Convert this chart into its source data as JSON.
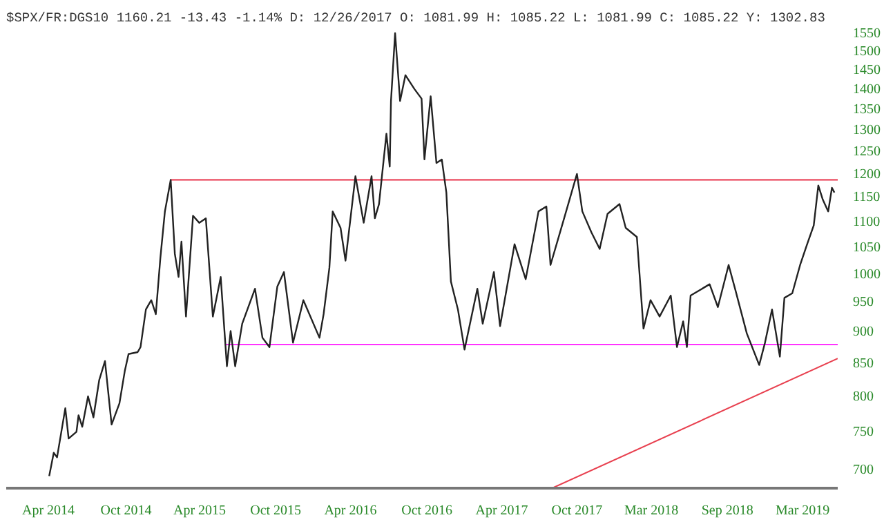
{
  "chart_data": {
    "type": "line",
    "title": "$SPX/FR:DGS10 1160.21 -13.43 -1.14% D: 12/26/2017 O: 1081.99 H: 1085.22 L: 1081.99 C: 1085.22 Y: 1302.83",
    "log": true,
    "grid": false,
    "xlim": [
      "2013-12-20",
      "2019-06-24"
    ],
    "xticks": [
      {
        "value": "2014-04-01",
        "label": "Apr 2014"
      },
      {
        "value": "2014-10-06",
        "label": "Oct 2014"
      },
      {
        "value": "2015-04-02",
        "label": "Apr 2015"
      },
      {
        "value": "2015-10-03",
        "label": "Oct 2015"
      },
      {
        "value": "2016-04-01",
        "label": "Apr 2016"
      },
      {
        "value": "2016-10-03",
        "label": "Oct 2016"
      },
      {
        "value": "2017-04-02",
        "label": "Apr 2017"
      },
      {
        "value": "2017-10-01",
        "label": "Oct 2017"
      },
      {
        "value": "2018-03-30",
        "label": "Mar 2018"
      },
      {
        "value": "2018-09-30",
        "label": "Sep 2018"
      },
      {
        "value": "2019-03-31",
        "label": "Mar 2019"
      }
    ],
    "ylim": [
      676,
      1550
    ],
    "yticks": [
      700,
      750,
      800,
      850,
      900,
      950,
      1000,
      1050,
      1100,
      1150,
      1200,
      1250,
      1300,
      1350,
      1400,
      1450,
      1500,
      1550
    ],
    "series": [
      {
        "color": "#e8334a",
        "x": [
          "2015-01-22",
          "2019-06-24"
        ],
        "values": [
          1185,
          1185
        ]
      },
      {
        "color": "#ff33ff",
        "x": [
          "2015-06-02",
          "2019-06-24"
        ],
        "values": [
          878,
          878
        ]
      },
      {
        "color": "#e8404f",
        "x": [
          "2017-08-02",
          "2019-06-24"
        ],
        "values": [
          676,
          856
        ]
      },
      {
        "color": "#222222",
        "x": [
          "2014-04-03",
          "2014-04-14",
          "2014-04-22",
          "2014-05-12",
          "2014-05-20",
          "2014-06-08",
          "2014-06-13",
          "2014-06-22",
          "2014-07-06",
          "2014-07-19",
          "2014-08-02",
          "2014-08-16",
          "2014-09-01",
          "2014-09-20",
          "2014-10-03",
          "2014-10-12",
          "2014-11-03",
          "2014-11-10",
          "2014-11-23",
          "2014-12-06",
          "2014-12-17",
          "2014-12-28",
          "2015-01-08",
          "2015-01-22",
          "2015-02-01",
          "2015-02-10",
          "2015-02-17",
          "2015-02-28",
          "2015-03-17",
          "2015-04-01",
          "2015-04-17",
          "2015-05-04",
          "2015-05-23",
          "2015-06-07",
          "2015-06-16",
          "2015-06-27",
          "2015-07-14",
          "2015-08-14",
          "2015-09-01",
          "2015-09-18",
          "2015-10-07",
          "2015-10-23",
          "2015-11-14",
          "2015-12-09",
          "2016-01-17",
          "2016-01-27",
          "2016-02-10",
          "2016-02-18",
          "2016-03-08",
          "2016-03-20",
          "2016-04-13",
          "2016-05-03",
          "2016-05-22",
          "2016-05-30",
          "2016-06-09",
          "2016-06-27",
          "2016-07-05",
          "2016-07-08",
          "2016-07-18",
          "2016-07-30",
          "2016-08-12",
          "2016-09-03",
          "2016-09-20",
          "2016-09-27",
          "2016-10-12",
          "2016-10-26",
          "2016-11-08",
          "2016-11-19",
          "2016-11-30",
          "2016-12-17",
          "2017-01-02",
          "2017-02-02",
          "2017-02-15",
          "2017-03-14",
          "2017-03-29",
          "2017-05-03",
          "2017-05-30",
          "2017-06-30",
          "2017-07-19",
          "2017-07-29",
          "2017-08-31",
          "2017-10-01",
          "2017-10-14",
          "2017-11-05",
          "2017-11-25",
          "2017-12-14",
          "2018-01-12",
          "2018-01-27",
          "2018-02-23",
          "2018-03-11",
          "2018-03-28",
          "2018-04-19",
          "2018-05-16",
          "2018-05-31",
          "2018-06-15",
          "2018-06-24",
          "2018-07-03",
          "2018-08-18",
          "2018-09-07",
          "2018-10-03",
          "2018-10-20",
          "2018-11-16",
          "2018-12-16",
          "2018-12-30",
          "2019-01-16",
          "2019-02-04",
          "2019-02-15",
          "2019-03-06",
          "2019-03-25",
          "2019-04-11",
          "2019-04-27",
          "2019-05-08",
          "2019-05-19",
          "2019-06-01",
          "2019-06-10",
          "2019-06-16"
        ],
        "values": [
          691,
          721,
          715,
          782,
          740,
          749,
          772,
          756,
          799,
          769,
          823,
          852,
          759,
          789,
          837,
          863,
          866,
          874,
          936,
          952,
          928,
          1028,
          1119,
          1185,
          1036,
          993,
          1059,
          924,
          1110,
          1096,
          1105,
          924,
          993,
          844,
          900,
          844,
          912,
          972,
          889,
          874,
          976,
          1002,
          881,
          952,
          889,
          928,
          1010,
          1119,
          1086,
          1023,
          1193,
          1096,
          1193,
          1105,
          1134,
          1289,
          1214,
          1368,
          1548,
          1368,
          1434,
          1398,
          1374,
          1230,
          1380,
          1222,
          1230,
          1158,
          985,
          936,
          870,
          972,
          912,
          1002,
          908,
          1054,
          989,
          1119,
          1129,
          1015,
          1105,
          1198,
          1119,
          1077,
          1045,
          1114,
          1134,
          1086,
          1068,
          904,
          952,
          924,
          960,
          874,
          916,
          874,
          960,
          980,
          940,
          1015,
          968,
          896,
          846,
          881,
          936,
          859,
          956,
          964,
          1015,
          1054,
          1091,
          1173,
          1143,
          1119,
          1168,
          1158
        ]
      }
    ]
  }
}
